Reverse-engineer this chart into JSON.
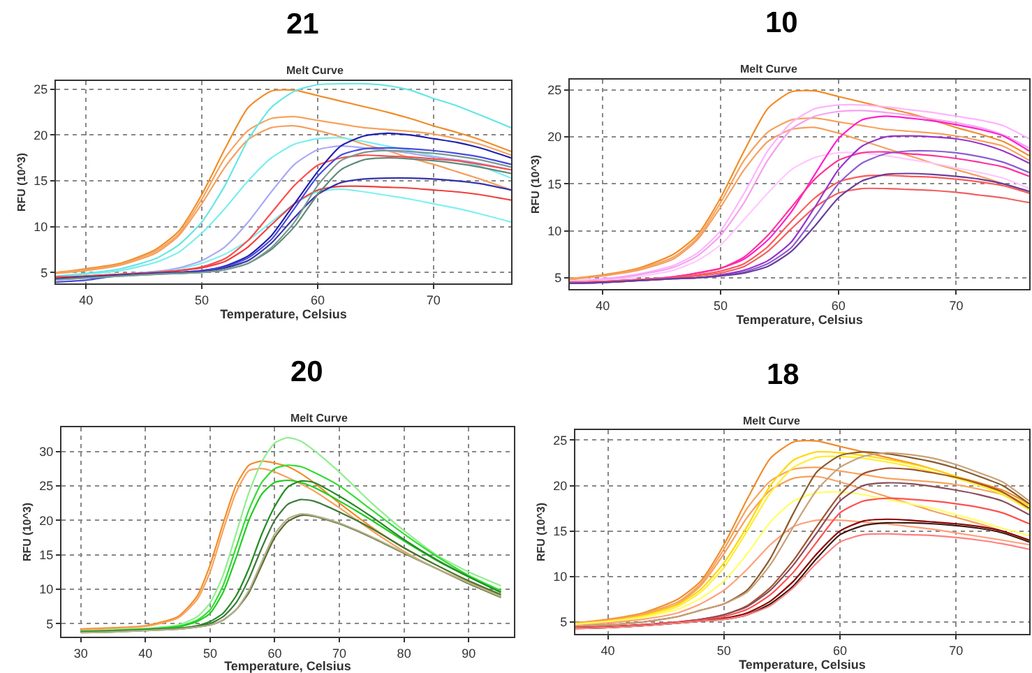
{
  "chart_data": [
    {
      "type": "line",
      "title": "21",
      "subtitle": "Melt Curve",
      "xlabel": "Temperature, Celsius",
      "ylabel": "RFU (10^3)",
      "grid": true,
      "line_style": "solid",
      "xlim": [
        37.4,
        76.7
      ],
      "xticks": [
        40,
        50,
        60,
        70
      ],
      "ylim": [
        3.8,
        25.9
      ],
      "yticks": [
        5,
        10,
        15,
        20,
        25
      ],
      "x": [
        37.4,
        40,
        43,
        46,
        48,
        50,
        52,
        54,
        56,
        58,
        60,
        62,
        64,
        66,
        68,
        70,
        72,
        74,
        76.7
      ],
      "series": [
        {
          "color": "#f28c28",
          "values": [
            5.0,
            5.4,
            6.0,
            7.5,
            9.5,
            13.5,
            18.5,
            23,
            24.8,
            24.9,
            24.3,
            23.7,
            23.1,
            22.5,
            21.8,
            21.0,
            20.3,
            19.5,
            18.2
          ]
        },
        {
          "color": "#f7a35c",
          "values": [
            5.0,
            5.3,
            5.9,
            7.3,
            9.2,
            13,
            17.5,
            20.5,
            21.8,
            22.0,
            21.6,
            21.2,
            20.8,
            20.6,
            20.4,
            20.1,
            19.6,
            19.0,
            17.8
          ]
        },
        {
          "color": "#f5a060",
          "values": [
            4.9,
            5.2,
            5.8,
            7.1,
            9.0,
            12.5,
            16.5,
            19.5,
            20.8,
            21.0,
            20.5,
            19.8,
            19.0,
            18.3,
            17.5,
            16.8,
            16.0,
            15.2,
            14.0
          ]
        },
        {
          "color": "#66e6e6",
          "values": [
            4.6,
            4.9,
            5.4,
            6.5,
            8,
            10.5,
            14.5,
            19.5,
            23,
            24.8,
            25.5,
            25.6,
            25.6,
            25.4,
            24.9,
            24.0,
            23.2,
            22.2,
            20.8
          ]
        },
        {
          "color": "#7aeeee",
          "values": [
            4.5,
            4.8,
            5.2,
            6.1,
            7.2,
            9.3,
            12,
            15,
            17.5,
            19,
            19.6,
            19.7,
            19.3,
            18.8,
            18.3,
            17.7,
            17.2,
            16.6,
            15.3
          ]
        },
        {
          "color": "#80f0f0",
          "values": [
            4.4,
            4.6,
            4.8,
            5.1,
            5.4,
            6,
            7,
            8.5,
            10.5,
            12.5,
            13.8,
            14.1,
            13.8,
            13.4,
            13.0,
            12.5,
            12.0,
            11.4,
            10.5
          ]
        },
        {
          "color": "#a9a9f5",
          "values": [
            4.4,
            4.6,
            4.8,
            5.1,
            5.5,
            6.3,
            7.8,
            10.5,
            13.8,
            16.8,
            18.4,
            18.8,
            18.6,
            18.3,
            18.0,
            17.6,
            17.3,
            16.9,
            16.2
          ]
        },
        {
          "color": "#ff4c4c",
          "values": [
            4.5,
            4.6,
            4.8,
            5.0,
            5.2,
            5.6,
            6.5,
            8.5,
            11.5,
            14.5,
            16.7,
            17.5,
            17.8,
            17.7,
            17.6,
            17.4,
            17.2,
            16.8,
            16.2
          ]
        },
        {
          "color": "#f04040",
          "values": [
            4.5,
            4.6,
            4.8,
            5,
            5.2,
            5.5,
            6.2,
            7.8,
            10.2,
            12.5,
            14,
            14.4,
            14.4,
            14.3,
            14.2,
            14.0,
            13.8,
            13.5,
            12.9
          ]
        },
        {
          "color": "#2020b0",
          "values": [
            4.3,
            4.5,
            4.7,
            4.9,
            5.0,
            5.2,
            5.7,
            6.8,
            9.0,
            12.5,
            16,
            18.8,
            19.9,
            20.2,
            20.0,
            19.6,
            19.2,
            18.6,
            17.5
          ]
        },
        {
          "color": "#4a4ae0",
          "values": [
            3.95,
            4.15,
            4.7,
            4.9,
            5.0,
            5.2,
            5.6,
            6.6,
            8.6,
            12,
            15.5,
            17.8,
            18.5,
            18.6,
            18.5,
            18.3,
            18.0,
            17.6,
            16.8
          ]
        },
        {
          "color": "#3333aa",
          "values": [
            4.3,
            4.5,
            4.7,
            4.9,
            5.0,
            5.1,
            5.5,
            6.3,
            8.2,
            11,
            13.5,
            14.8,
            15.2,
            15.3,
            15.3,
            15.2,
            15.0,
            14.7,
            14.0
          ]
        },
        {
          "color": "#5f8a7a",
          "values": [
            4.2,
            4.4,
            4.6,
            4.8,
            4.9,
            5.0,
            5.3,
            6.0,
            7.5,
            10.0,
            13.5,
            16.2,
            17.3,
            17.5,
            17.4,
            17.2,
            16.9,
            16.5,
            15.8
          ]
        },
        {
          "color": "#7a9a90",
          "values": [
            4.2,
            4.4,
            4.6,
            4.8,
            4.9,
            5.0,
            5.3,
            6.0,
            7.7,
            10.5,
            14.5,
            17.2,
            18.1,
            18.3,
            18.2,
            18.0,
            17.7,
            17.3,
            16.5
          ]
        }
      ]
    },
    {
      "type": "line",
      "title": "10",
      "subtitle": "Melt Curve",
      "xlabel": "Temperature, Celsius",
      "ylabel": "RFU (10^3)",
      "grid": true,
      "line_style": "solid",
      "xlim": [
        37.2,
        76.2
      ],
      "xticks": [
        40,
        50,
        60,
        70
      ],
      "ylim": [
        3.8,
        26.1
      ],
      "yticks": [
        5,
        10,
        15,
        20,
        25
      ],
      "x": [
        37.2,
        40,
        43,
        46,
        48,
        50,
        52,
        54,
        56,
        58,
        60,
        62,
        64,
        66,
        68,
        70,
        72,
        74,
        76.2
      ],
      "series": [
        {
          "color": "#f28c28",
          "values": [
            4.9,
            5.3,
            6.0,
            7.5,
            9.5,
            13.5,
            18.5,
            23,
            24.8,
            24.9,
            24.3,
            23.7,
            23.1,
            22.5,
            21.8,
            21.0,
            20.3,
            19.5,
            18.0
          ]
        },
        {
          "color": "#f7a35c",
          "values": [
            4.9,
            5.2,
            5.9,
            7.2,
            9.2,
            13,
            17.5,
            20.5,
            21.8,
            22.0,
            21.6,
            21.2,
            20.8,
            20.6,
            20.4,
            20.1,
            19.6,
            19.0,
            17.5
          ]
        },
        {
          "color": "#f5a060",
          "values": [
            4.8,
            5.2,
            5.8,
            7.0,
            9.0,
            12.5,
            16.5,
            19.5,
            20.8,
            21.0,
            20.4,
            19.6,
            18.8,
            18.0,
            17.2,
            16.5,
            15.8,
            15.0,
            14.0
          ]
        },
        {
          "color": "#ffb3ff",
          "values": [
            4.6,
            4.9,
            5.4,
            6.3,
            7.6,
            10,
            14,
            18.5,
            21.5,
            23,
            23.4,
            23.4,
            23.2,
            22.9,
            22.6,
            22.2,
            21.8,
            21.2,
            19.8
          ]
        },
        {
          "color": "#f5a0f0",
          "values": [
            4.6,
            4.8,
            5.3,
            6.1,
            7.3,
            9.5,
            13,
            17.5,
            20.8,
            22.2,
            22.7,
            22.8,
            22.6,
            22.3,
            21.9,
            21.5,
            21.0,
            20.2,
            18.8
          ]
        },
        {
          "color": "#ffc8ff",
          "values": [
            4.5,
            4.7,
            5.1,
            5.8,
            6.8,
            8.5,
            11.2,
            14,
            16.5,
            17.8,
            18.3,
            18.3,
            18.0,
            17.6,
            17.2,
            16.7,
            16.2,
            15.6,
            14.5
          ]
        },
        {
          "color": "#ff1ecf",
          "values": [
            4.5,
            4.6,
            4.8,
            5.1,
            5.5,
            6.0,
            7.0,
            9.0,
            12,
            16,
            19.8,
            21.8,
            22.2,
            22.0,
            21.7,
            21.3,
            20.8,
            20.1,
            18.5
          ]
        },
        {
          "color": "#ff3399",
          "values": [
            4.5,
            4.6,
            4.8,
            5.1,
            5.5,
            6.0,
            7.2,
            9.5,
            12.5,
            15.5,
            17.5,
            18.3,
            18.4,
            18.2,
            18.0,
            17.7,
            17.3,
            16.8,
            15.8
          ]
        },
        {
          "color": "#ff5a5a",
          "values": [
            4.5,
            4.6,
            4.8,
            5.0,
            5.3,
            5.7,
            6.5,
            8.3,
            11,
            13.5,
            15.2,
            15.8,
            15.9,
            15.8,
            15.7,
            15.5,
            15.2,
            14.8,
            14.0
          ]
        },
        {
          "color": "#f06060",
          "values": [
            4.5,
            4.6,
            4.8,
            5.0,
            5.2,
            5.5,
            6.2,
            7.8,
            10.2,
            12.5,
            14,
            14.5,
            14.5,
            14.4,
            14.3,
            14.1,
            13.8,
            13.5,
            13.0
          ]
        },
        {
          "color": "#9933cc",
          "values": [
            4.4,
            4.5,
            4.7,
            4.9,
            5.0,
            5.3,
            5.8,
            6.8,
            8.8,
            12.5,
            16.5,
            19,
            20,
            20.1,
            20.0,
            19.8,
            19.3,
            18.5,
            17.2
          ]
        },
        {
          "color": "#8a5fd0",
          "values": [
            4.4,
            4.5,
            4.7,
            4.9,
            5.0,
            5.2,
            5.6,
            6.5,
            8.2,
            11.5,
            15,
            17.2,
            18.2,
            18.5,
            18.5,
            18.3,
            17.9,
            17.3,
            16.2
          ]
        },
        {
          "color": "#6a3d9a",
          "values": [
            4.4,
            4.5,
            4.7,
            4.9,
            5.0,
            5.2,
            5.5,
            6.2,
            7.8,
            10.5,
            13.5,
            15.3,
            16.0,
            16.1,
            16.0,
            15.8,
            15.5,
            15.0,
            14.2
          ]
        }
      ]
    },
    {
      "type": "line",
      "title": "20",
      "subtitle": "Melt Curve",
      "xlabel": "Temperature, Celsius",
      "ylabel": "RFU (10^3)",
      "grid": true,
      "line_style": "solid",
      "xlim": [
        27,
        97
      ],
      "xticks": [
        30,
        40,
        50,
        60,
        70,
        80,
        90
      ],
      "ylim": [
        3.1,
        33.5
      ],
      "yticks": [
        5,
        10,
        15,
        20,
        25,
        30
      ],
      "x": [
        30,
        35,
        40,
        45,
        48,
        50,
        52,
        54,
        56,
        58,
        60,
        62,
        64,
        66,
        70,
        75,
        80,
        85,
        90,
        95
      ],
      "series": [
        {
          "color": "#f28c28",
          "values": [
            4.2,
            4.4,
            4.7,
            6.0,
            9,
            13.5,
            19.5,
            25,
            28,
            28.6,
            28.3,
            27.8,
            26.8,
            25.5,
            22.5,
            19,
            16,
            13.5,
            11.2,
            9.2
          ]
        },
        {
          "color": "#f7a35c",
          "values": [
            4.1,
            4.3,
            4.6,
            5.8,
            8.5,
            12.5,
            18.5,
            24,
            27.2,
            27.5,
            27,
            26.2,
            25.3,
            24.3,
            21.8,
            18.5,
            15.5,
            13,
            11,
            9.0
          ]
        },
        {
          "color": "#90ee90",
          "values": [
            3.9,
            4.1,
            4.3,
            4.8,
            6,
            8,
            12,
            18,
            24,
            28.5,
            31.2,
            32,
            31.5,
            30.2,
            27,
            22.5,
            18.5,
            15,
            12.5,
            10.5
          ]
        },
        {
          "color": "#33dd33",
          "values": [
            3.9,
            4.0,
            4.2,
            4.6,
            5.5,
            7,
            10.5,
            16,
            21.5,
            25.5,
            27.5,
            28,
            27.8,
            27,
            25,
            21.5,
            18,
            14.8,
            12,
            9.8
          ]
        },
        {
          "color": "#22cc22",
          "values": [
            3.8,
            4.0,
            4.2,
            4.5,
            5.3,
            6.5,
            9.5,
            14.5,
            20,
            23.8,
            25.5,
            25.8,
            25.5,
            24.8,
            22.8,
            20,
            17,
            14.2,
            11.8,
            9.6
          ]
        },
        {
          "color": "#228b22",
          "values": [
            3.8,
            3.9,
            4.1,
            4.3,
            4.7,
            5.3,
            6.5,
            9,
            13,
            18,
            22,
            24.8,
            25.7,
            25.5,
            23.5,
            20.5,
            17.2,
            14.3,
            11.8,
            9.5
          ]
        },
        {
          "color": "#3c7a3c",
          "values": [
            3.8,
            3.9,
            4.1,
            4.3,
            4.6,
            5.0,
            6.0,
            8,
            11.5,
            16,
            20,
            22.3,
            23,
            22.8,
            21.2,
            18.8,
            16,
            13.5,
            11.2,
            9.2
          ]
        },
        {
          "color": "#556b2f",
          "values": [
            3.7,
            3.8,
            4.0,
            4.2,
            4.5,
            4.8,
            5.5,
            7,
            9.5,
            13.5,
            17.5,
            19.8,
            20.7,
            20.6,
            19.5,
            17.5,
            15.2,
            13,
            10.8,
            8.8
          ]
        },
        {
          "color": "#b5b08a",
          "values": [
            3.7,
            3.8,
            4.0,
            4.2,
            4.5,
            4.8,
            5.5,
            7,
            9.8,
            14,
            18,
            20.2,
            20.9,
            20.7,
            19.6,
            17.6,
            15.3,
            13,
            10.9,
            8.9
          ]
        }
      ]
    },
    {
      "type": "line",
      "title": "18",
      "subtitle": "Melt Curve",
      "xlabel": "Temperature, Celsius",
      "ylabel": "RFU (10^3)",
      "grid": true,
      "line_style": "solid",
      "xlim": [
        37.2,
        76.3
      ],
      "xticks": [
        40,
        50,
        60,
        70
      ],
      "ylim": [
        3.7,
        26.1
      ],
      "yticks": [
        5,
        10,
        15,
        20,
        25
      ],
      "x": [
        37.2,
        40,
        43,
        46,
        48,
        50,
        52,
        54,
        56,
        58,
        60,
        62,
        64,
        66,
        68,
        70,
        72,
        74,
        76.3
      ],
      "series": [
        {
          "color": "#f28c28",
          "values": [
            4.9,
            5.3,
            6.0,
            7.5,
            9.5,
            13.5,
            18.5,
            23,
            24.8,
            24.9,
            24.3,
            23.7,
            23.1,
            22.5,
            21.8,
            21.0,
            20.3,
            19.5,
            18.0
          ]
        },
        {
          "color": "#f7a35c",
          "values": [
            4.9,
            5.2,
            5.9,
            7.2,
            9.2,
            13,
            17.5,
            20.5,
            21.8,
            22.0,
            21.6,
            21.2,
            20.8,
            20.6,
            20.4,
            20.1,
            19.6,
            19.0,
            17.5
          ]
        },
        {
          "color": "#f5a060",
          "values": [
            4.8,
            5.2,
            5.8,
            7.0,
            9.0,
            12.5,
            16.5,
            19.5,
            20.8,
            21.0,
            20.4,
            19.6,
            18.8,
            18.0,
            17.2,
            16.5,
            15.8,
            15.0,
            14.0
          ]
        },
        {
          "color": "#ffd700",
          "values": [
            4.8,
            5.1,
            5.7,
            6.9,
            8.6,
            11.5,
            15.5,
            20,
            22.8,
            23.7,
            23.6,
            23.3,
            22.9,
            22.4,
            21.8,
            21.0,
            20.2,
            19.2,
            17.8
          ]
        },
        {
          "color": "#ffee33",
          "values": [
            4.8,
            5.1,
            5.6,
            6.7,
            8.3,
            11,
            15,
            19.2,
            22,
            23.1,
            23.2,
            23,
            22.6,
            22.1,
            21.5,
            20.8,
            20.0,
            19.0,
            17.3
          ]
        },
        {
          "color": "#ffff66",
          "values": [
            4.7,
            5.0,
            5.5,
            6.4,
            7.6,
            9.5,
            12.5,
            16,
            18.3,
            19.2,
            19.3,
            19.0,
            18.5,
            18.0,
            17.5,
            16.8,
            16.1,
            15.3,
            14.5
          ]
        },
        {
          "color": "#ffa07a",
          "values": [
            4.6,
            4.9,
            5.3,
            6.0,
            7.0,
            8.5,
            10.8,
            13.5,
            15.5,
            16.2,
            16.2,
            16.0,
            15.8,
            15.5,
            15.2,
            14.8,
            14.4,
            14.0,
            13.5
          ]
        },
        {
          "color": "#8b5a2b",
          "values": [
            4.5,
            4.7,
            5.0,
            5.6,
            6.3,
            7.0,
            8.5,
            12,
            17,
            21.5,
            23.3,
            23.7,
            23.5,
            23.1,
            22.6,
            21.9,
            21.0,
            20.0,
            18.0
          ]
        },
        {
          "color": "#c8a27a",
          "values": [
            4.5,
            4.7,
            5.0,
            5.6,
            6.3,
            7.0,
            8.3,
            11.3,
            15.5,
            19.5,
            22,
            23.2,
            23.6,
            23.4,
            23.0,
            22.3,
            21.4,
            20.4,
            18.3
          ]
        },
        {
          "color": "#a0522d",
          "values": [
            4.4,
            4.5,
            4.7,
            5.0,
            5.3,
            5.8,
            6.8,
            8.8,
            11.8,
            15.5,
            19,
            21.3,
            21.9,
            21.8,
            21.4,
            20.9,
            20.2,
            19.3,
            17.5
          ]
        },
        {
          "color": "#8b4c5c",
          "values": [
            4.4,
            4.5,
            4.7,
            5.0,
            5.3,
            5.8,
            6.7,
            8.5,
            11.3,
            14.8,
            18.3,
            20,
            20.3,
            20.2,
            19.9,
            19.5,
            19,
            18.3,
            16.8
          ]
        },
        {
          "color": "#ff5050",
          "values": [
            4.4,
            4.5,
            4.7,
            5.0,
            5.2,
            5.6,
            6.4,
            8,
            10.5,
            13.8,
            17,
            18.3,
            18.6,
            18.5,
            18.3,
            18.0,
            17.6,
            17.0,
            15.8
          ]
        },
        {
          "color": "#8b0000",
          "values": [
            4.3,
            4.4,
            4.6,
            4.9,
            5.1,
            5.4,
            6.0,
            7.3,
            9.5,
            12.5,
            15,
            16.1,
            16.3,
            16.2,
            16.0,
            15.8,
            15.5,
            15.0,
            14.0
          ]
        },
        {
          "color": "#3b1a10",
          "values": [
            4.3,
            4.4,
            4.6,
            4.9,
            5.1,
            5.3,
            5.8,
            7,
            9,
            12,
            14.6,
            15.6,
            15.9,
            15.9,
            15.8,
            15.6,
            15.3,
            14.8,
            13.8
          ]
        },
        {
          "color": "#ff8080",
          "values": [
            4.3,
            4.4,
            4.6,
            4.9,
            5.1,
            5.3,
            5.8,
            6.8,
            8.8,
            11.5,
            13.8,
            14.6,
            14.7,
            14.6,
            14.5,
            14.3,
            14.0,
            13.6,
            13.0
          ]
        }
      ]
    }
  ]
}
